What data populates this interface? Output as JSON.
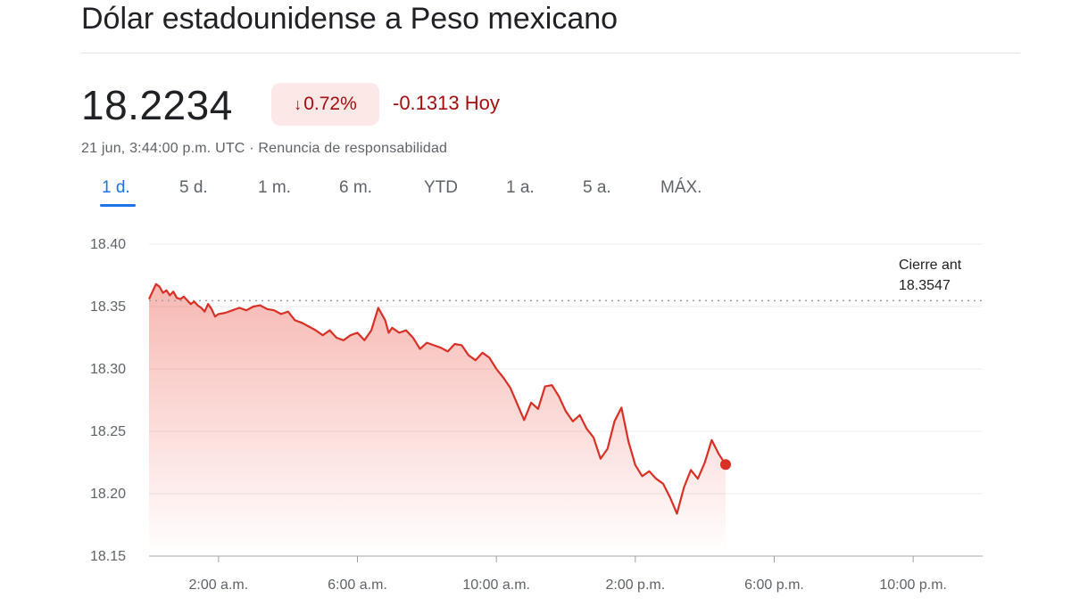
{
  "header": {
    "title": "Dólar estadounidense a Peso mexicano"
  },
  "quote": {
    "price": "18.2234",
    "change_pct": "0.72%",
    "change_pct_icon": "arrow-down-icon",
    "change_abs": "-0.1313 Hoy",
    "timestamp": "21 jun, 3:44:00 p.m. UTC",
    "separator": " · ",
    "disclaimer": "Renuncia de responsabilidad",
    "negative_color": "#a50e0e",
    "negative_bg": "#fce8e6"
  },
  "ranges": {
    "items": [
      "1 d.",
      "5 d.",
      "1 m.",
      "6 m.",
      "YTD",
      "1 a.",
      "5 a.",
      "MÁX."
    ],
    "active_index": 0,
    "active_color": "#1a73e8"
  },
  "chart_data": {
    "type": "area",
    "title": "",
    "xlabel": "",
    "ylabel": "",
    "line_color": "#d93025",
    "ylim": [
      18.15,
      18.4
    ],
    "yticks": [
      "18.40",
      "18.35",
      "18.30",
      "18.25",
      "18.20",
      "18.15"
    ],
    "ytick_values": [
      18.4,
      18.35,
      18.3,
      18.25,
      18.2,
      18.15
    ],
    "xticks": [
      "2:00 a.m.",
      "6:00 a.m.",
      "10:00 a.m.",
      "2:00 p.m.",
      "6:00 p.m.",
      "10:00 p.m."
    ],
    "xtick_hours": [
      2,
      6,
      10,
      14,
      18,
      22
    ],
    "xlim_hours": [
      0,
      24
    ],
    "grid": true,
    "previous_close": {
      "label_line1": "Cierre ant",
      "label_line2": "18.3547",
      "value": 18.3547
    },
    "x_hours": [
      0.0,
      0.1,
      0.2,
      0.3,
      0.4,
      0.5,
      0.6,
      0.7,
      0.8,
      0.9,
      1.0,
      1.1,
      1.2,
      1.3,
      1.4,
      1.5,
      1.6,
      1.7,
      1.8,
      1.9,
      2.0,
      2.2,
      2.4,
      2.6,
      2.8,
      3.0,
      3.2,
      3.4,
      3.6,
      3.8,
      4.0,
      4.2,
      4.4,
      4.6,
      4.8,
      5.0,
      5.2,
      5.4,
      5.6,
      5.8,
      6.0,
      6.2,
      6.4,
      6.6,
      6.8,
      6.9,
      7.0,
      7.2,
      7.4,
      7.6,
      7.8,
      8.0,
      8.2,
      8.4,
      8.6,
      8.8,
      9.0,
      9.2,
      9.4,
      9.6,
      9.8,
      10.0,
      10.2,
      10.4,
      10.6,
      10.8,
      11.0,
      11.2,
      11.4,
      11.6,
      11.8,
      12.0,
      12.2,
      12.4,
      12.6,
      12.8,
      13.0,
      13.2,
      13.4,
      13.6,
      13.8,
      14.0,
      14.2,
      14.4,
      14.6,
      14.8,
      15.0,
      15.2,
      15.4,
      15.6,
      15.8,
      16.0,
      16.2,
      16.4,
      16.6
    ],
    "values": [
      18.356,
      18.362,
      18.368,
      18.366,
      18.361,
      18.363,
      18.359,
      18.362,
      18.357,
      18.356,
      18.358,
      18.355,
      18.352,
      18.354,
      18.351,
      18.349,
      18.346,
      18.352,
      18.348,
      18.342,
      18.344,
      18.345,
      18.347,
      18.349,
      18.347,
      18.35,
      18.351,
      18.348,
      18.347,
      18.344,
      18.346,
      18.339,
      18.337,
      18.334,
      18.331,
      18.327,
      18.331,
      18.325,
      18.323,
      18.327,
      18.329,
      18.323,
      18.331,
      18.349,
      18.339,
      18.329,
      18.333,
      18.329,
      18.331,
      18.325,
      18.316,
      18.321,
      18.319,
      18.317,
      18.314,
      18.32,
      18.319,
      18.311,
      18.307,
      18.313,
      18.309,
      18.3,
      18.293,
      18.285,
      18.272,
      18.259,
      18.273,
      18.268,
      18.286,
      18.287,
      18.278,
      18.266,
      18.258,
      18.263,
      18.252,
      18.245,
      18.228,
      18.236,
      18.258,
      18.269,
      18.242,
      18.223,
      18.214,
      18.218,
      18.212,
      18.208,
      18.197,
      18.184,
      18.205,
      18.219,
      18.212,
      18.225,
      18.243,
      18.232,
      18.2234
    ]
  }
}
